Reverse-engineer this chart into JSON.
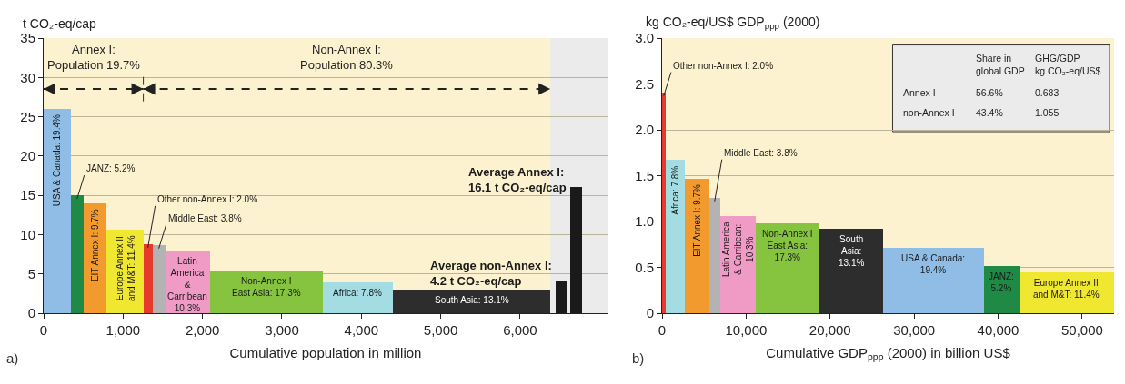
{
  "chart_data": [
    {
      "type": "histogram",
      "ylabel": "t CO₂-eq/cap",
      "xlabel": "Cumulative population in million",
      "bins": [
        0,
        340,
        500,
        790,
        1255,
        1370,
        1530,
        2100,
        3510,
        4400,
        6380,
        6450,
        6580,
        6630,
        6780
      ],
      "values": [
        26,
        15,
        14,
        10.6,
        8.8,
        8.7,
        8,
        5.4,
        3.9,
        3,
        null,
        4.2,
        null,
        16.1
      ],
      "colors": [
        "#8fbde6",
        "#1e8a45",
        "#f39a2e",
        "#f0e830",
        "#e53a2c",
        "#b3b3b3",
        "#f09ac6",
        "#86c440",
        "#a3dde3",
        "#2d2d2d",
        "#ffffff",
        "#1a1a1a",
        "#ffffff",
        "#1a1a1a"
      ],
      "xlim": [
        0,
        7100
      ],
      "xticks": [
        0,
        {
          "value": 1000,
          "label": "1,000"
        },
        {
          "value": 2000,
          "label": "2,000"
        },
        {
          "value": 3000,
          "label": "3,000"
        },
        {
          "value": 4000,
          "label": "4,000"
        },
        {
          "value": 5000,
          "label": "5,000"
        },
        {
          "value": 6000,
          "label": "6,000"
        }
      ],
      "ylim": [
        0,
        35
      ],
      "yticks": [
        0,
        5,
        10,
        15,
        20,
        25,
        30,
        35
      ],
      "grid": "y",
      "bands": [
        {
          "axis": "x",
          "from": 6380,
          "to": 7100,
          "color": "#ebebeb"
        }
      ],
      "ref_lines": [
        {
          "axis": "x",
          "value": 1255,
          "line_style": "dashed"
        }
      ],
      "annotations": [
        "a)",
        "Annex I:\nPopulation 19.7%",
        "Non-Annex I:\nPopulation 80.3%",
        {
          "text": "USA & Canada: 19.4%",
          "x": 170,
          "y": 26
        },
        {
          "text": "JANZ: 5.2%",
          "x": 420,
          "y": 15
        },
        {
          "text": "EIT Annex I: 9.7%",
          "x": 645,
          "y": 14
        },
        {
          "text": "Europe Annex II\nand M&T: 11.4%",
          "x": 1022.5,
          "y": 10.6
        },
        {
          "text": "Other non-Annex I: 2.0%",
          "x": 1312.5,
          "y": 8.8
        },
        {
          "text": "Middle East: 3.8%",
          "x": 1450,
          "y": 8.7
        },
        {
          "text": "Latin\nAmerica\n&\nCarribean\n10.3%",
          "x": 1815,
          "y": 8
        },
        {
          "text": "Non-Annex I\nEast Asia: 17.3%",
          "x": 2805,
          "y": 5.4
        },
        {
          "text": "Africa: 7.8%",
          "x": 3955,
          "y": 3.9
        },
        {
          "text": "South Asia: 13.1%",
          "x": 5390,
          "y": 3
        },
        {
          "text": "Average non-Annex I:\n4.2 t CO₂-eq/cap",
          "x": 6515,
          "y": 4.2
        },
        {
          "text": "Average Annex I:\n16.1 t CO₂-eq/cap",
          "x": 6705,
          "y": 16.1
        }
      ]
    },
    {
      "type": "histogram",
      "ylabel": "kg CO₂-eq/US$ GDP$_{ppp}$ (2000)",
      "xlabel": "Cumulative GDP$_{ppp}$ (2000) in billion US$",
      "bins": [
        0,
        400,
        2700,
        5600,
        6900,
        11200,
        18700,
        26300,
        38300,
        42500,
        53800
      ],
      "values": [
        2.41,
        1.67,
        1.47,
        1.26,
        1.06,
        0.98,
        0.92,
        0.71,
        0.51,
        0.45
      ],
      "colors": [
        "#e53a2c",
        "#a3dde3",
        "#f39a2e",
        "#b3b3b3",
        "#f09ac6",
        "#86c440",
        "#2d2d2d",
        "#8fbde6",
        "#1e8a45",
        "#f0e830"
      ],
      "xlim": [
        0,
        53800
      ],
      "xticks": [
        0,
        {
          "value": 10000,
          "label": "10,000"
        },
        {
          "value": 20000,
          "label": "20,000"
        },
        {
          "value": 30000,
          "label": "30,000"
        },
        {
          "value": 40000,
          "label": "40,000"
        },
        {
          "value": 50000,
          "label": "50,000"
        }
      ],
      "ylim": [
        0,
        3
      ],
      "yticks": [
        0,
        0.5,
        {
          "value": 1,
          "label": "1.0"
        },
        1.5,
        {
          "value": 2,
          "label": "2.0"
        },
        2.5,
        {
          "value": 3,
          "label": "3.0"
        }
      ],
      "grid": "y",
      "annotations": [
        "b)",
        "Share in\nglobal GDP",
        "GHG/GDP\nkg CO₂-eq/US$",
        "Annex I",
        "56.6%",
        "0.683",
        "non-Annex I",
        "43.4%",
        "1.055",
        {
          "text": "Other non-Annex I: 2.0%",
          "x": 200,
          "y": 2.41
        },
        {
          "text": "Africa: 7.8%",
          "x": 1550,
          "y": 1.67
        },
        {
          "text": "EIT Annex I: 9.7%",
          "x": 4150,
          "y": 1.47
        },
        {
          "text": "Middle East: 3.8%",
          "x": 6250,
          "y": 1.26
        },
        {
          "text": "Latin America\n& Carribean:\n10.3%",
          "x": 9050,
          "y": 1.06
        },
        {
          "text": "Non-Annex I\nEast Asia:\n17.3%",
          "x": 14950,
          "y": 0.98
        },
        {
          "text": "South\nAsia:\n13.1%",
          "x": 22500,
          "y": 0.92
        },
        {
          "text": "USA & Canada:\n19.4%",
          "x": 32300,
          "y": 0.71
        },
        {
          "text": "JANZ:\n5.2%",
          "x": 40400,
          "y": 0.51
        },
        {
          "text": "Europe Annex II\nand M&T: 11.4%",
          "x": 48150,
          "y": 0.45
        }
      ]
    }
  ]
}
